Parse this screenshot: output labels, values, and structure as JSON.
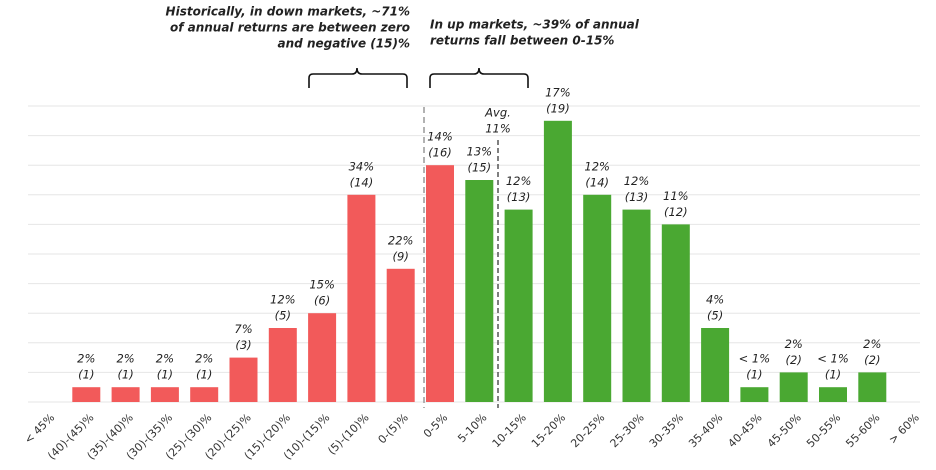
{
  "chart_data": {
    "type": "bar",
    "categories": [
      "< 45%",
      "(40)-(45)%",
      "(35)-(40)%",
      "(30)-(35)%",
      "(25)-(30)%",
      "(20)-(25)%",
      "(15)-(20)%",
      "(10)-(15)%",
      "(5)-(10)%",
      "0-(5)%",
      "0-5%",
      "5-10%",
      "10-15%",
      "15-20%",
      "20-25%",
      "25-30%",
      "30-35%",
      "35-40%",
      "40-45%",
      "45-50%",
      "50-55%",
      "55-60%",
      "> 60%"
    ],
    "values": [
      null,
      1,
      1,
      1,
      1,
      3,
      5,
      6,
      14,
      9,
      16,
      15,
      13,
      19,
      14,
      13,
      12,
      5,
      1,
      2,
      1,
      2,
      null
    ],
    "value_labels": [
      null,
      "(1)",
      "(1)",
      "(1)",
      "(1)",
      "(3)",
      "(5)",
      "(6)",
      "(14)",
      "(9)",
      "(16)",
      "(15)",
      "(13)",
      "(19)",
      "(14)",
      "(13)",
      "(12)",
      "(5)",
      "(1)",
      "(2)",
      "(1)",
      "(2)",
      null
    ],
    "share_labels": [
      null,
      "2%",
      "2%",
      "2%",
      "2%",
      "7%",
      "12%",
      "15%",
      "34%",
      "22%",
      "14%",
      "13%",
      "12%",
      "17%",
      "12%",
      "12%",
      "11%",
      "4%",
      "< 1%",
      "2%",
      "< 1%",
      "2%",
      null
    ],
    "colors": [
      "#f25a5a",
      "#f25a5a",
      "#f25a5a",
      "#f25a5a",
      "#f25a5a",
      "#f25a5a",
      "#f25a5a",
      "#f25a5a",
      "#f25a5a",
      "#f25a5a",
      "#f25a5a",
      "#4aa832",
      "#4aa832",
      "#4aa832",
      "#4aa832",
      "#4aa832",
      "#4aa832",
      "#4aa832",
      "#4aa832",
      "#4aa832",
      "#4aa832",
      "#4aa832",
      "#4aa832"
    ],
    "ylim": [
      0,
      20
    ],
    "yticks": [
      0,
      2,
      4,
      6,
      8,
      10,
      12,
      14,
      16,
      18,
      20
    ],
    "grid": true,
    "annotations": {
      "down": [
        "Historically, in down markets, ~71%",
        "of annual returns are between zero",
        "and negative (15)%"
      ],
      "up": [
        "In up markets, ~39% of annual",
        "returns fall between 0-15%"
      ],
      "avg": [
        "Avg.",
        "11%"
      ]
    }
  }
}
